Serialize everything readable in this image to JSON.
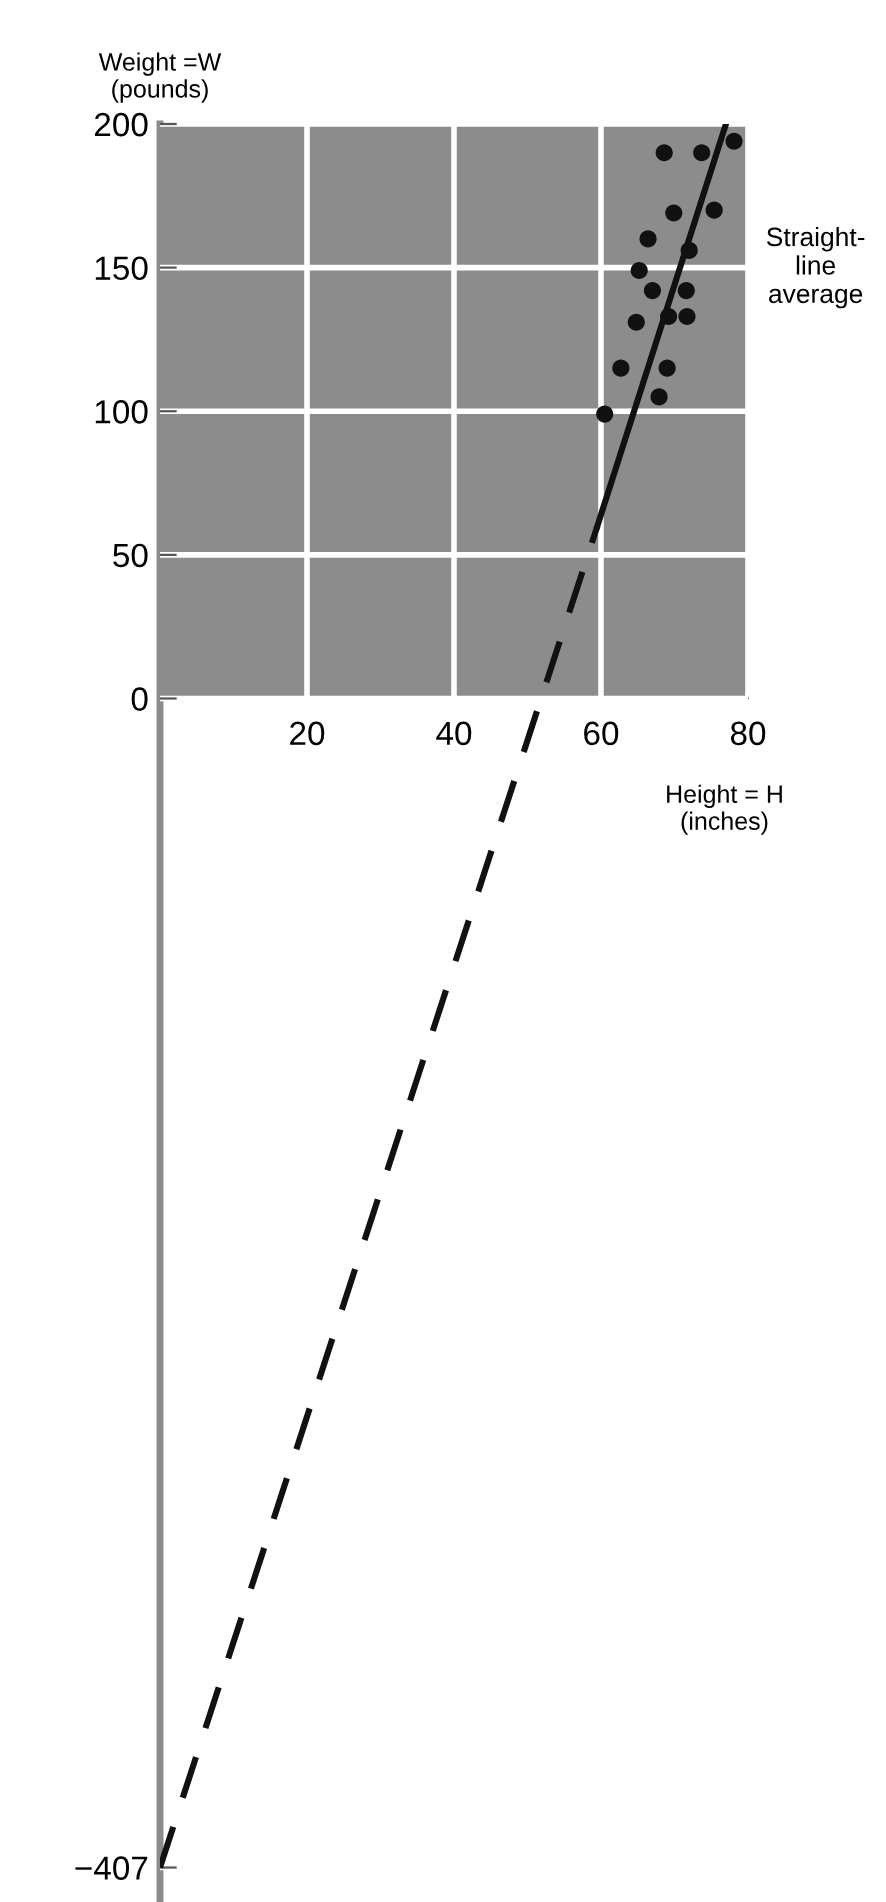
{
  "chart_data": {
    "type": "scatter",
    "xlabel": "Height = H\n(inches)",
    "ylabel": "Weight =W\n(pounds)",
    "annotations": [
      "Straight-\nline\naverage"
    ],
    "xlim": [
      0,
      80
    ],
    "ylim": [
      -419,
      200
    ],
    "xticks": [
      20,
      40,
      60,
      80
    ],
    "yticks": [
      {
        "value": -407,
        "label": "−407"
      },
      0,
      50,
      100,
      150,
      200
    ],
    "grid": true,
    "bands": [
      {
        "axis": "y",
        "from": 0,
        "to": 200,
        "color": "#8c8c8c"
      }
    ],
    "series": [
      {
        "marker": "circle",
        "color": "#111111",
        "x": [
          68.6,
          73.7,
          78.1,
          69.9,
          75.4,
          66.4,
          72,
          65.2,
          67,
          71.6,
          64.8,
          69.2,
          71.7,
          62.7,
          69,
          67.9,
          60.5
        ],
        "values": [
          190,
          190,
          194,
          169,
          170,
          160,
          156,
          149,
          142,
          142,
          131,
          133,
          133,
          115,
          115,
          105,
          99
        ]
      },
      {
        "type": "line",
        "color": "#111111",
        "line_style": "dashed",
        "x": [
          0,
          59.5
        ],
        "values": [
          -407,
          60
        ]
      },
      {
        "type": "line",
        "color": "#111111",
        "line_style": "solid",
        "x": [
          59.5,
          77
        ],
        "values": [
          60,
          200
        ]
      }
    ]
  }
}
